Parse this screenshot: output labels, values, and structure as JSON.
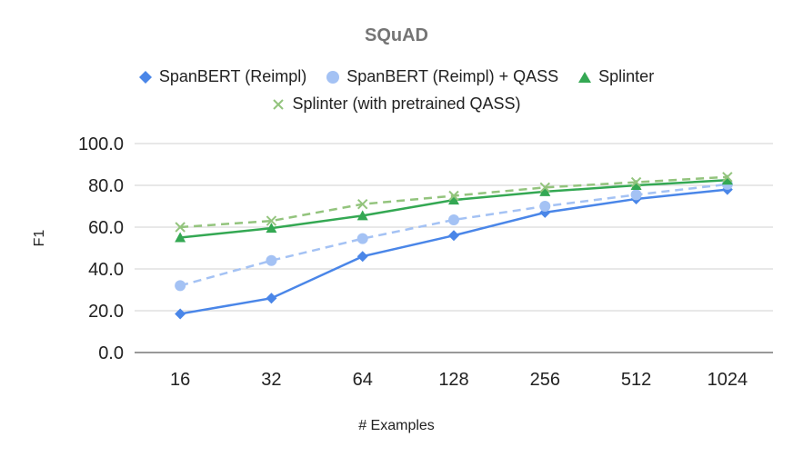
{
  "chart_data": {
    "type": "line",
    "title": "SQuAD",
    "xlabel": "# Examples",
    "ylabel": "F1",
    "categories": [
      "16",
      "32",
      "64",
      "128",
      "256",
      "512",
      "1024"
    ],
    "ylim": [
      0,
      100
    ],
    "yticks": [
      "0.0",
      "20.0",
      "40.0",
      "60.0",
      "80.0",
      "100.0"
    ],
    "grid": true,
    "legend_position": "top",
    "series": [
      {
        "name": "SpanBERT (Reimpl)",
        "color": "#4a86e8",
        "marker": "diamond",
        "dashed": false,
        "values": [
          18.5,
          26.0,
          46.0,
          56.0,
          67.0,
          73.5,
          78.0
        ]
      },
      {
        "name": "SpanBERT (Reimpl) + QASS",
        "color": "#a4c2f4",
        "marker": "circle",
        "dashed": true,
        "values": [
          32.0,
          44.0,
          54.5,
          63.5,
          70.0,
          75.5,
          80.5
        ]
      },
      {
        "name": "Splinter",
        "color": "#34a853",
        "marker": "triangle",
        "dashed": false,
        "values": [
          55.0,
          59.5,
          65.5,
          73.0,
          77.0,
          80.0,
          82.5
        ]
      },
      {
        "name": "Splinter (with pretrained QASS)",
        "color": "#93c47d",
        "marker": "x",
        "dashed": true,
        "values": [
          60.0,
          63.0,
          71.0,
          75.0,
          79.0,
          81.5,
          84.0
        ]
      }
    ]
  }
}
